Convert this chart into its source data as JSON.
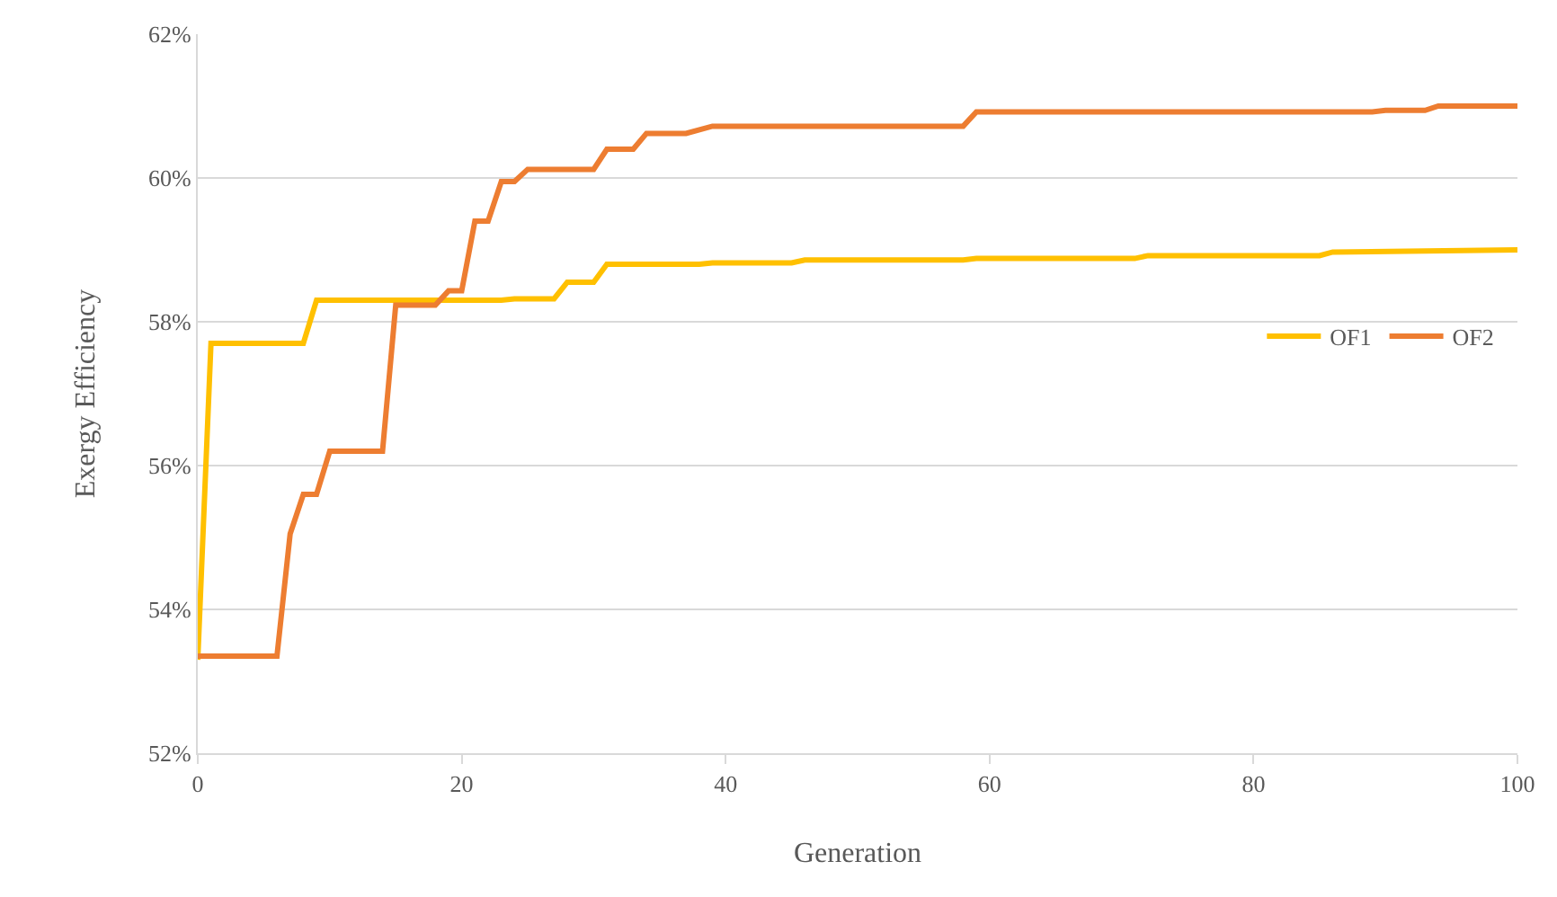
{
  "chart_data": {
    "type": "line",
    "xlabel": "Generation",
    "ylabel": "Exergy Efficiency",
    "xlim": [
      0,
      100
    ],
    "xticks": [
      0,
      20,
      40,
      60,
      80,
      100
    ],
    "ylim": [
      52,
      62
    ],
    "yticks": [
      {
        "value": 52,
        "label": "52%"
      },
      {
        "value": 54,
        "label": "54%"
      },
      {
        "value": 56,
        "label": "56%"
      },
      {
        "value": 58,
        "label": "58%"
      },
      {
        "value": 60,
        "label": "60%"
      },
      {
        "value": 62,
        "label": "62%"
      }
    ],
    "grid": "y",
    "legend": "right",
    "marker": "none",
    "line_style": "solid",
    "series": [
      {
        "name": "OF1",
        "color": "#ffc000",
        "x": [
          0,
          1,
          8,
          9,
          23,
          24,
          27,
          28,
          30,
          31,
          38,
          39,
          45,
          46,
          58,
          59,
          71,
          72,
          85,
          86,
          100
        ],
        "values": [
          53.3,
          57.7,
          57.7,
          58.3,
          58.3,
          58.32,
          58.32,
          58.55,
          58.55,
          58.8,
          58.8,
          58.82,
          58.82,
          58.86,
          58.86,
          58.88,
          58.88,
          58.92,
          58.92,
          58.97,
          59.0
        ]
      },
      {
        "name": "OF2",
        "color": "#ed7d31",
        "x": [
          0,
          6,
          7,
          8,
          9,
          10,
          14,
          15,
          18,
          19,
          20,
          21,
          22,
          23,
          24,
          25,
          30,
          31,
          33,
          34,
          37,
          39,
          58,
          59,
          89,
          90,
          93,
          94,
          100
        ],
        "values": [
          53.35,
          53.35,
          55.05,
          55.6,
          55.6,
          56.2,
          56.2,
          58.23,
          58.23,
          58.43,
          58.43,
          59.4,
          59.4,
          59.95,
          59.95,
          60.12,
          60.12,
          60.4,
          60.4,
          60.62,
          60.62,
          60.72,
          60.72,
          60.92,
          60.92,
          60.94,
          60.94,
          61.0,
          61.0
        ]
      }
    ]
  }
}
